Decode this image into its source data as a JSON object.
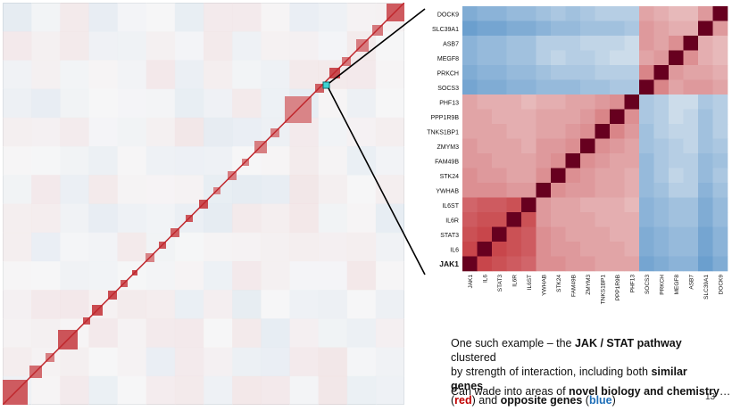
{
  "chart_data": {
    "type": "heatmap",
    "genes": [
      "JAK1",
      "IL6",
      "STAT3",
      "IL6R",
      "IL6ST",
      "YWHAB",
      "STK24",
      "FAM49B",
      "ZMYM3",
      "TNKS1BP1",
      "PPP1R9B",
      "PHF13",
      "SOCS3",
      "PRKCH",
      "MEGF8",
      "ASB7",
      "SLC39A1",
      "DOCK9"
    ],
    "highlighted_gene": "JAK1",
    "value_range": [
      -1,
      1
    ],
    "colors": {
      "negative": "#1f6fb8",
      "neutral": "#f7f7f7",
      "positive": "#c0272d",
      "diagonal": "#67001f"
    },
    "matrix": [
      [
        1,
        0.85,
        0.8,
        0.75,
        0.7,
        0.5,
        0.5,
        0.45,
        0.45,
        0.4,
        0.4,
        0.4,
        -0.6,
        -0.55,
        -0.5,
        -0.5,
        -0.65,
        -0.55
      ],
      [
        0.85,
        1,
        0.85,
        0.8,
        0.75,
        0.5,
        0.45,
        0.45,
        0.4,
        0.4,
        0.4,
        0.35,
        -0.55,
        -0.5,
        -0.45,
        -0.45,
        -0.6,
        -0.5
      ],
      [
        0.8,
        0.85,
        1,
        0.8,
        0.75,
        0.5,
        0.45,
        0.4,
        0.4,
        0.4,
        0.35,
        0.35,
        -0.55,
        -0.5,
        -0.45,
        -0.45,
        -0.6,
        -0.5
      ],
      [
        0.75,
        0.8,
        0.8,
        1,
        0.8,
        0.45,
        0.4,
        0.4,
        0.4,
        0.35,
        0.35,
        0.35,
        -0.5,
        -0.45,
        -0.4,
        -0.4,
        -0.55,
        -0.45
      ],
      [
        0.7,
        0.75,
        0.75,
        0.8,
        1,
        0.45,
        0.4,
        0.4,
        0.35,
        0.35,
        0.35,
        0.3,
        -0.5,
        -0.45,
        -0.4,
        -0.4,
        -0.55,
        -0.45
      ],
      [
        0.5,
        0.5,
        0.5,
        0.45,
        0.45,
        1,
        0.5,
        0.45,
        0.45,
        0.4,
        0.4,
        0.35,
        -0.45,
        -0.4,
        -0.3,
        -0.3,
        -0.5,
        -0.4
      ],
      [
        0.5,
        0.45,
        0.45,
        0.4,
        0.4,
        0.5,
        1,
        0.5,
        0.45,
        0.4,
        0.4,
        0.35,
        -0.45,
        -0.35,
        -0.25,
        -0.3,
        -0.45,
        -0.35
      ],
      [
        0.45,
        0.45,
        0.4,
        0.4,
        0.4,
        0.45,
        0.5,
        1,
        0.5,
        0.45,
        0.4,
        0.4,
        -0.45,
        -0.35,
        -0.3,
        -0.3,
        -0.45,
        -0.4
      ],
      [
        0.45,
        0.4,
        0.4,
        0.4,
        0.35,
        0.45,
        0.45,
        0.5,
        1,
        0.5,
        0.45,
        0.4,
        -0.4,
        -0.35,
        -0.3,
        -0.25,
        -0.4,
        -0.35
      ],
      [
        0.4,
        0.4,
        0.4,
        0.35,
        0.35,
        0.4,
        0.4,
        0.45,
        0.5,
        1,
        0.55,
        0.45,
        -0.4,
        -0.3,
        -0.25,
        -0.25,
        -0.4,
        -0.3
      ],
      [
        0.4,
        0.4,
        0.35,
        0.35,
        0.35,
        0.4,
        0.4,
        0.4,
        0.45,
        0.55,
        1,
        0.5,
        -0.35,
        -0.3,
        -0.2,
        -0.25,
        -0.4,
        -0.3
      ],
      [
        0.4,
        0.35,
        0.35,
        0.35,
        0.3,
        0.35,
        0.35,
        0.4,
        0.4,
        0.45,
        0.5,
        1,
        -0.35,
        -0.3,
        -0.2,
        -0.2,
        -0.35,
        -0.3
      ],
      [
        -0.6,
        -0.55,
        -0.55,
        -0.5,
        -0.5,
        -0.45,
        -0.45,
        -0.45,
        -0.4,
        -0.4,
        -0.35,
        -0.35,
        1,
        0.55,
        0.4,
        0.45,
        0.45,
        0.4
      ],
      [
        -0.55,
        -0.5,
        -0.5,
        -0.45,
        -0.45,
        -0.4,
        -0.35,
        -0.35,
        -0.35,
        -0.3,
        -0.3,
        -0.3,
        0.55,
        1,
        0.45,
        0.4,
        0.4,
        0.35
      ],
      [
        -0.5,
        -0.45,
        -0.45,
        -0.4,
        -0.4,
        -0.3,
        -0.25,
        -0.3,
        -0.3,
        -0.25,
        -0.2,
        -0.2,
        0.4,
        0.45,
        1,
        0.5,
        0.35,
        0.3
      ],
      [
        -0.5,
        -0.45,
        -0.45,
        -0.4,
        -0.4,
        -0.3,
        -0.3,
        -0.3,
        -0.25,
        -0.25,
        -0.25,
        -0.2,
        0.45,
        0.4,
        0.5,
        1,
        0.35,
        0.3
      ],
      [
        -0.65,
        -0.6,
        -0.6,
        -0.55,
        -0.55,
        -0.5,
        -0.45,
        -0.45,
        -0.4,
        -0.4,
        -0.4,
        -0.35,
        0.45,
        0.4,
        0.35,
        0.35,
        1,
        0.45
      ],
      [
        -0.55,
        -0.5,
        -0.5,
        -0.45,
        -0.45,
        -0.4,
        -0.35,
        -0.4,
        -0.35,
        -0.3,
        -0.3,
        -0.3,
        0.4,
        0.35,
        0.3,
        0.3,
        0.45,
        1
      ]
    ]
  },
  "caption": {
    "line1_prefix": "One such example – the ",
    "pathway": "JAK / STAT pathway",
    "line1_suffix": " clustered",
    "line2_prefix": "by strength of interaction, including both ",
    "similar_genes": "similar genes",
    "red_word": "red",
    "and_text": " and ",
    "opposite_genes": "opposite genes",
    "blue_word": "blue",
    "line4": "Can wade into areas of ",
    "novel": "novel biology and chemistry",
    "ellipsis": "…"
  },
  "page_number": "13"
}
